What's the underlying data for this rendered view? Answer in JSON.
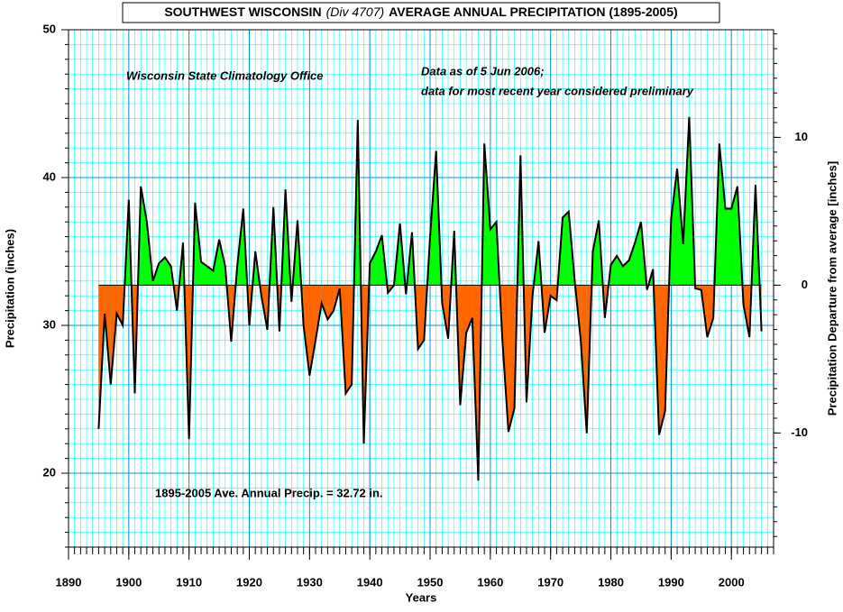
{
  "chart_data": {
    "type": "area",
    "title": [
      "SOUTHWEST WISCONSIN",
      "(Div 4707)",
      "AVERAGE ANNUAL PRECIPITATION (1895-2005)"
    ],
    "annotations": [
      "Wisconsin State Climatology Office",
      "Data as of 5 Jun 2006;",
      "data for most recent year considered preliminary",
      "1895-2005 Ave. Annual Precip. = 32.72 in."
    ],
    "xlabel": "Years",
    "ylabel": "Precipitation (inches)",
    "y2label": "Precipitation Departure from average [inches]",
    "average": 32.72,
    "above_color": "#00ff00",
    "below_color": "#ff6600",
    "line_color": "#000000",
    "grid": true,
    "xlim": [
      1890,
      2007
    ],
    "xticks": [
      1890,
      1900,
      1910,
      1920,
      1930,
      1940,
      1950,
      1960,
      1970,
      1980,
      1990,
      2000
    ],
    "ylim": [
      15,
      50
    ],
    "yticks": [
      20,
      30,
      40,
      50
    ],
    "y2lim": [
      -17.72,
      17.28
    ],
    "y2ticks": [
      -10,
      0,
      10
    ],
    "x": [
      1895,
      1896,
      1897,
      1898,
      1899,
      1900,
      1901,
      1902,
      1903,
      1904,
      1905,
      1906,
      1907,
      1908,
      1909,
      1910,
      1911,
      1912,
      1913,
      1914,
      1915,
      1916,
      1917,
      1918,
      1919,
      1920,
      1921,
      1922,
      1923,
      1924,
      1925,
      1926,
      1927,
      1928,
      1929,
      1930,
      1931,
      1932,
      1933,
      1934,
      1935,
      1936,
      1937,
      1938,
      1939,
      1940,
      1941,
      1942,
      1943,
      1944,
      1945,
      1946,
      1947,
      1948,
      1949,
      1950,
      1951,
      1952,
      1953,
      1954,
      1955,
      1956,
      1957,
      1958,
      1959,
      1960,
      1961,
      1962,
      1963,
      1964,
      1965,
      1966,
      1967,
      1968,
      1969,
      1970,
      1971,
      1972,
      1973,
      1974,
      1975,
      1976,
      1977,
      1978,
      1979,
      1980,
      1981,
      1982,
      1983,
      1984,
      1985,
      1986,
      1987,
      1988,
      1989,
      1990,
      1991,
      1992,
      1993,
      1994,
      1995,
      1996,
      1997,
      1998,
      1999,
      2000,
      2001,
      2002,
      2003,
      2004,
      2005
    ],
    "values": [
      23.0,
      30.8,
      26,
      30.8,
      30,
      38.5,
      25.4,
      39.4,
      37,
      33,
      34.2,
      34.6,
      34,
      31,
      35.6,
      22.3,
      38.3,
      34.3,
      34,
      33.7,
      35.8,
      34,
      28.9,
      34,
      37.9,
      30,
      35,
      32,
      29.7,
      38,
      29.6,
      39.2,
      31.6,
      37.1,
      30,
      26.6,
      29,
      31.5,
      30.4,
      31,
      32.5,
      25.4,
      26,
      43.9,
      22,
      34.2,
      35,
      36.1,
      32.2,
      32.7,
      36.9,
      32.1,
      36.3,
      28.4,
      29,
      36,
      41.8,
      31.5,
      29.1,
      36.4,
      24.6,
      29.5,
      30.5,
      19.5,
      42.3,
      36.5,
      37,
      29,
      22.8,
      24.4,
      41.5,
      24.8,
      32,
      35.7,
      29.5,
      32,
      31.7,
      37.3,
      37.7,
      33,
      29,
      22.7,
      35,
      37.1,
      30.5,
      34.1,
      34.7,
      34,
      34.4,
      35.6,
      37,
      32.4,
      33.8,
      22.6,
      24.2,
      37.2,
      40.6,
      35.5,
      44.1,
      32.5,
      32.4,
      29.2,
      30.5,
      42.3,
      37.9,
      37.9,
      39.4,
      31.4,
      29.2,
      39.5,
      29.6
    ]
  }
}
